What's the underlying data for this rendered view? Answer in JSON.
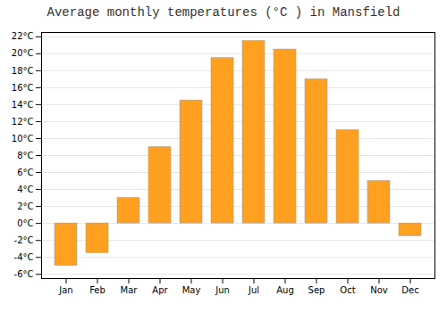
{
  "chart_data": {
    "type": "bar",
    "title": "Average monthly temperatures (°C ) in Mansfield",
    "categories": [
      "Jan",
      "Feb",
      "Mar",
      "Apr",
      "May",
      "Jun",
      "Jul",
      "Aug",
      "Sep",
      "Oct",
      "Nov",
      "Dec"
    ],
    "values": [
      -5,
      -3.5,
      3,
      9,
      14.5,
      19.5,
      21.5,
      20.5,
      17,
      11,
      5,
      -1.5
    ],
    "color": "#FFA020",
    "ylim": [
      -6.5,
      22.5
    ],
    "yticks": [
      {
        "value": -6,
        "label": "-6°C"
      },
      {
        "value": -4,
        "label": "-4°C"
      },
      {
        "value": -2,
        "label": "-2°C"
      },
      {
        "value": 0,
        "label": "0°C"
      },
      {
        "value": 2,
        "label": "2°C"
      },
      {
        "value": 4,
        "label": "4°C"
      },
      {
        "value": 6,
        "label": "6°C"
      },
      {
        "value": 8,
        "label": "8°C"
      },
      {
        "value": 10,
        "label": "10°C"
      },
      {
        "value": 12,
        "label": "12°C"
      },
      {
        "value": 14,
        "label": "14°C"
      },
      {
        "value": 16,
        "label": "16°C"
      },
      {
        "value": 18,
        "label": "18°C"
      },
      {
        "value": 20,
        "label": "20°C"
      },
      {
        "value": 22,
        "label": "22°C"
      }
    ],
    "grid": true
  }
}
